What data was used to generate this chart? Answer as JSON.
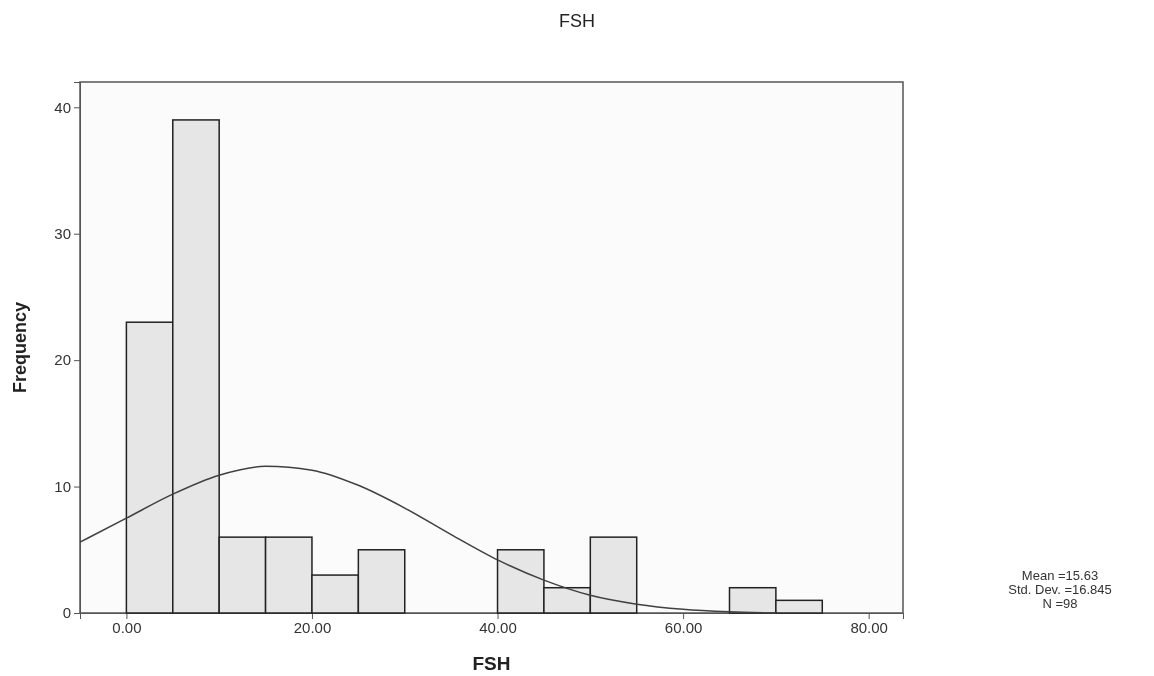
{
  "chart_data": {
    "type": "histogram",
    "title": "FSH",
    "xlabel": "FSH",
    "ylabel": "Frequency",
    "xlim": [
      -5,
      83.7
    ],
    "ylim": [
      0,
      42
    ],
    "xticks": [
      {
        "value": 0,
        "label": "0.00"
      },
      {
        "value": 20,
        "label": "20.00"
      },
      {
        "value": 40,
        "label": "40.00"
      },
      {
        "value": 60,
        "label": "60.00"
      },
      {
        "value": 80,
        "label": "80.00"
      }
    ],
    "yticks": [
      0,
      10,
      20,
      30,
      40
    ],
    "grid": false,
    "series": [
      {
        "color": "#e6e6e6",
        "bins": [
          0,
          5,
          10,
          15,
          20,
          25,
          30,
          35,
          40,
          45,
          50,
          55,
          60,
          65,
          70,
          75
        ],
        "values": [
          23,
          39,
          6,
          6,
          3,
          5,
          0,
          0,
          5,
          2,
          6,
          0,
          0,
          2,
          1
        ]
      },
      {
        "type": "line",
        "color": "#404040",
        "marker": "none",
        "x": [
          -5,
          0,
          5,
          10,
          15,
          20,
          25,
          30,
          35,
          40,
          45,
          50,
          55,
          60,
          65,
          70
        ],
        "values": [
          5.6,
          7.5,
          9.4,
          10.9,
          11.6,
          11.3,
          10.1,
          8.3,
          6.2,
          4.2,
          2.6,
          1.4,
          0.7,
          0.3,
          0.1,
          0.0
        ]
      }
    ],
    "annotations": [
      "Mean =15.63",
      "Std. Dev. =16.845",
      "N =98"
    ]
  }
}
